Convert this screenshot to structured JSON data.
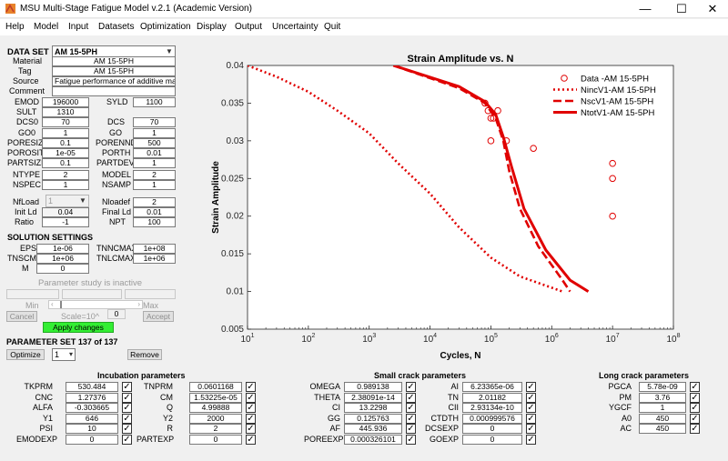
{
  "window": {
    "title": "MSU Multi-Stage Fatigue Model v.2.1 (Academic Version)"
  },
  "menu": [
    "Help",
    "Model",
    "Input",
    "Datasets",
    "Optimization",
    "Display",
    "Output",
    "Uncertainty",
    "Quit"
  ],
  "dataset": {
    "label": "DATA SET",
    "value": "AM 15-5PH"
  },
  "info": [
    {
      "label": "Material",
      "value": "AM 15-5PH"
    },
    {
      "label": "Tag",
      "value": "AM 15-5PH"
    },
    {
      "label": "Source",
      "value": "Fatigue performance of additive manufa"
    },
    {
      "label": "Comment",
      "value": ""
    }
  ],
  "params_left": [
    {
      "label": "EMOD",
      "value": "196000"
    },
    {
      "label": "SULT",
      "value": "1310"
    },
    {
      "label": "DCS0",
      "value": "70"
    },
    {
      "label": "GO0",
      "value": "1"
    },
    {
      "label": "PORESIZE",
      "value": "0.1"
    },
    {
      "label": "POROSITY",
      "value": "1e-05"
    },
    {
      "label": "PARTSIZE",
      "value": "0.1"
    },
    {
      "label": "NTYPE",
      "value": "2"
    },
    {
      "label": "NSPEC",
      "value": "1"
    }
  ],
  "params_right": [
    {
      "label": "SYLD",
      "value": "1100"
    },
    {
      "label": "DCS",
      "value": "70"
    },
    {
      "label": "GO",
      "value": "1"
    },
    {
      "label": "PORENND",
      "value": "500"
    },
    {
      "label": "PORTH",
      "value": "0.01"
    },
    {
      "label": "PARTDEV",
      "value": "1"
    },
    {
      "label": "MODEL",
      "value": "2"
    },
    {
      "label": "NSAMP",
      "value": "1"
    }
  ],
  "load": {
    "nfload_label": "NfLoad",
    "nfload_value": "1",
    "nloadef_label": "Nloadef",
    "nloadef_value": "2",
    "initld_label": "Init Ld",
    "initld_value": "0.04",
    "finalld_label": "Final Ld",
    "finalld_value": "0.01",
    "ratio_label": "Ratio",
    "ratio_value": "-1",
    "npt_label": "NPT",
    "npt_value": "100"
  },
  "solution": {
    "title": "SOLUTION SETTINGS",
    "eps_label": "EPS",
    "eps": "1e-06",
    "tnncmax_label": "TNNCMAX",
    "tnncmax": "1e+08",
    "tnscmax_label": "TNSCMAX",
    "tnscmax": "1e+06",
    "tnlcmax_label": "TNLCMAX",
    "tnlcmax": "1e+06",
    "m_label": "M",
    "m": "0"
  },
  "study": {
    "inactive": "Parameter study is inactive",
    "min": "Min",
    "max": "Max",
    "cancel": "Cancel",
    "scale": "Scale=10^",
    "scale_val": "0",
    "accept": "Accept",
    "apply": "Apply changes"
  },
  "paramset": {
    "label": "PARAMETER SET 137 of 137",
    "optimize": "Optimize",
    "select": "1",
    "remove": "Remove"
  },
  "chart_data": {
    "type": "line",
    "title": "Strain Amplitude vs. N",
    "xlabel": "Cycles, N",
    "ylabel": "Strain Amplitude",
    "xscale": "log",
    "xlim": [
      10,
      100000000
    ],
    "ylim": [
      0.005,
      0.04
    ],
    "xticks": [
      "10^1",
      "10^2",
      "10^3",
      "10^4",
      "10^5",
      "10^6",
      "10^7",
      "10^8"
    ],
    "yticks": [
      "0.005",
      "0.01",
      "0.015",
      "0.02",
      "0.025",
      "0.03",
      "0.035",
      "0.04"
    ],
    "legend_position": "top-right",
    "color": "#e00000",
    "series": [
      {
        "name": "Data -AM 15-5PH",
        "style": "markers",
        "x": [
          80000,
          90000,
          100000,
          110000,
          100000,
          130000,
          180000,
          500000,
          10000000,
          10000000,
          10000000
        ],
        "y": [
          0.035,
          0.034,
          0.033,
          0.033,
          0.03,
          0.034,
          0.03,
          0.029,
          0.027,
          0.025,
          0.02
        ]
      },
      {
        "name": "NincV1-AM 15-5PH",
        "style": "dotted",
        "x": [
          10,
          30,
          100,
          300,
          1000,
          3000,
          10000,
          30000,
          100000,
          300000,
          1000000,
          1500000
        ],
        "y": [
          0.04,
          0.0385,
          0.0365,
          0.034,
          0.031,
          0.027,
          0.023,
          0.0185,
          0.0145,
          0.012,
          0.0105,
          0.01
        ]
      },
      {
        "name": "NscV1-AM 15-5PH",
        "style": "dashed",
        "x": [
          2500,
          30000,
          80000,
          120000,
          160000,
          200000,
          300000,
          600000,
          1500000,
          2000000
        ],
        "y": [
          0.04,
          0.037,
          0.035,
          0.033,
          0.03,
          0.026,
          0.021,
          0.016,
          0.0115,
          0.01
        ]
      },
      {
        "name": "NtotV1-AM 15-5PH",
        "style": "solid",
        "x": [
          2500,
          30000,
          80000,
          120000,
          160000,
          220000,
          350000,
          800000,
          2000000,
          4000000
        ],
        "y": [
          0.04,
          0.0372,
          0.0352,
          0.0335,
          0.0305,
          0.0265,
          0.021,
          0.0155,
          0.0115,
          0.01
        ]
      }
    ]
  },
  "incubation": {
    "title": "Incubation parameters",
    "col1": [
      {
        "label": "TKPRM",
        "value": "530.484"
      },
      {
        "label": "CNC",
        "value": "1.27376"
      },
      {
        "label": "ALFA",
        "value": "-0.303665"
      },
      {
        "label": "Y1",
        "value": "646"
      },
      {
        "label": "PSI",
        "value": "10"
      },
      {
        "label": "EMODEXP",
        "value": "0"
      }
    ],
    "col2": [
      {
        "label": "TNPRM",
        "value": "0.0601168"
      },
      {
        "label": "CM",
        "value": "1.53225e-05"
      },
      {
        "label": "Q",
        "value": "4.99888"
      },
      {
        "label": "Y2",
        "value": "2000"
      },
      {
        "label": "R",
        "value": "2"
      },
      {
        "label": "PARTEXP",
        "value": "0"
      }
    ]
  },
  "smallcrack": {
    "title": "Small crack parameters",
    "col1": [
      {
        "label": "OMEGA",
        "value": "0.989138"
      },
      {
        "label": "THETA",
        "value": "2.38091e-14"
      },
      {
        "label": "CI",
        "value": "13.2298"
      },
      {
        "label": "GG",
        "value": "0.125763"
      },
      {
        "label": "AF",
        "value": "445.936"
      },
      {
        "label": "POREEXP",
        "value": "0.000326101"
      }
    ],
    "col2": [
      {
        "label": "AI",
        "value": "6.23365e-06"
      },
      {
        "label": "TN",
        "value": "2.01182"
      },
      {
        "label": "CII",
        "value": "2.93134e-10"
      },
      {
        "label": "CTDTH",
        "value": "0.000999576"
      },
      {
        "label": "DCSEXP",
        "value": "0"
      },
      {
        "label": "GOEXP",
        "value": "0"
      }
    ]
  },
  "longcrack": {
    "title": "Long crack parameters",
    "col1": [
      {
        "label": "PGCA",
        "value": "5.78e-09"
      },
      {
        "label": "PM",
        "value": "3.76"
      },
      {
        "label": "YGCF",
        "value": "1"
      },
      {
        "label": "A0",
        "value": "450"
      },
      {
        "label": "AC",
        "value": "450"
      }
    ]
  },
  "check_glyph": "✓"
}
